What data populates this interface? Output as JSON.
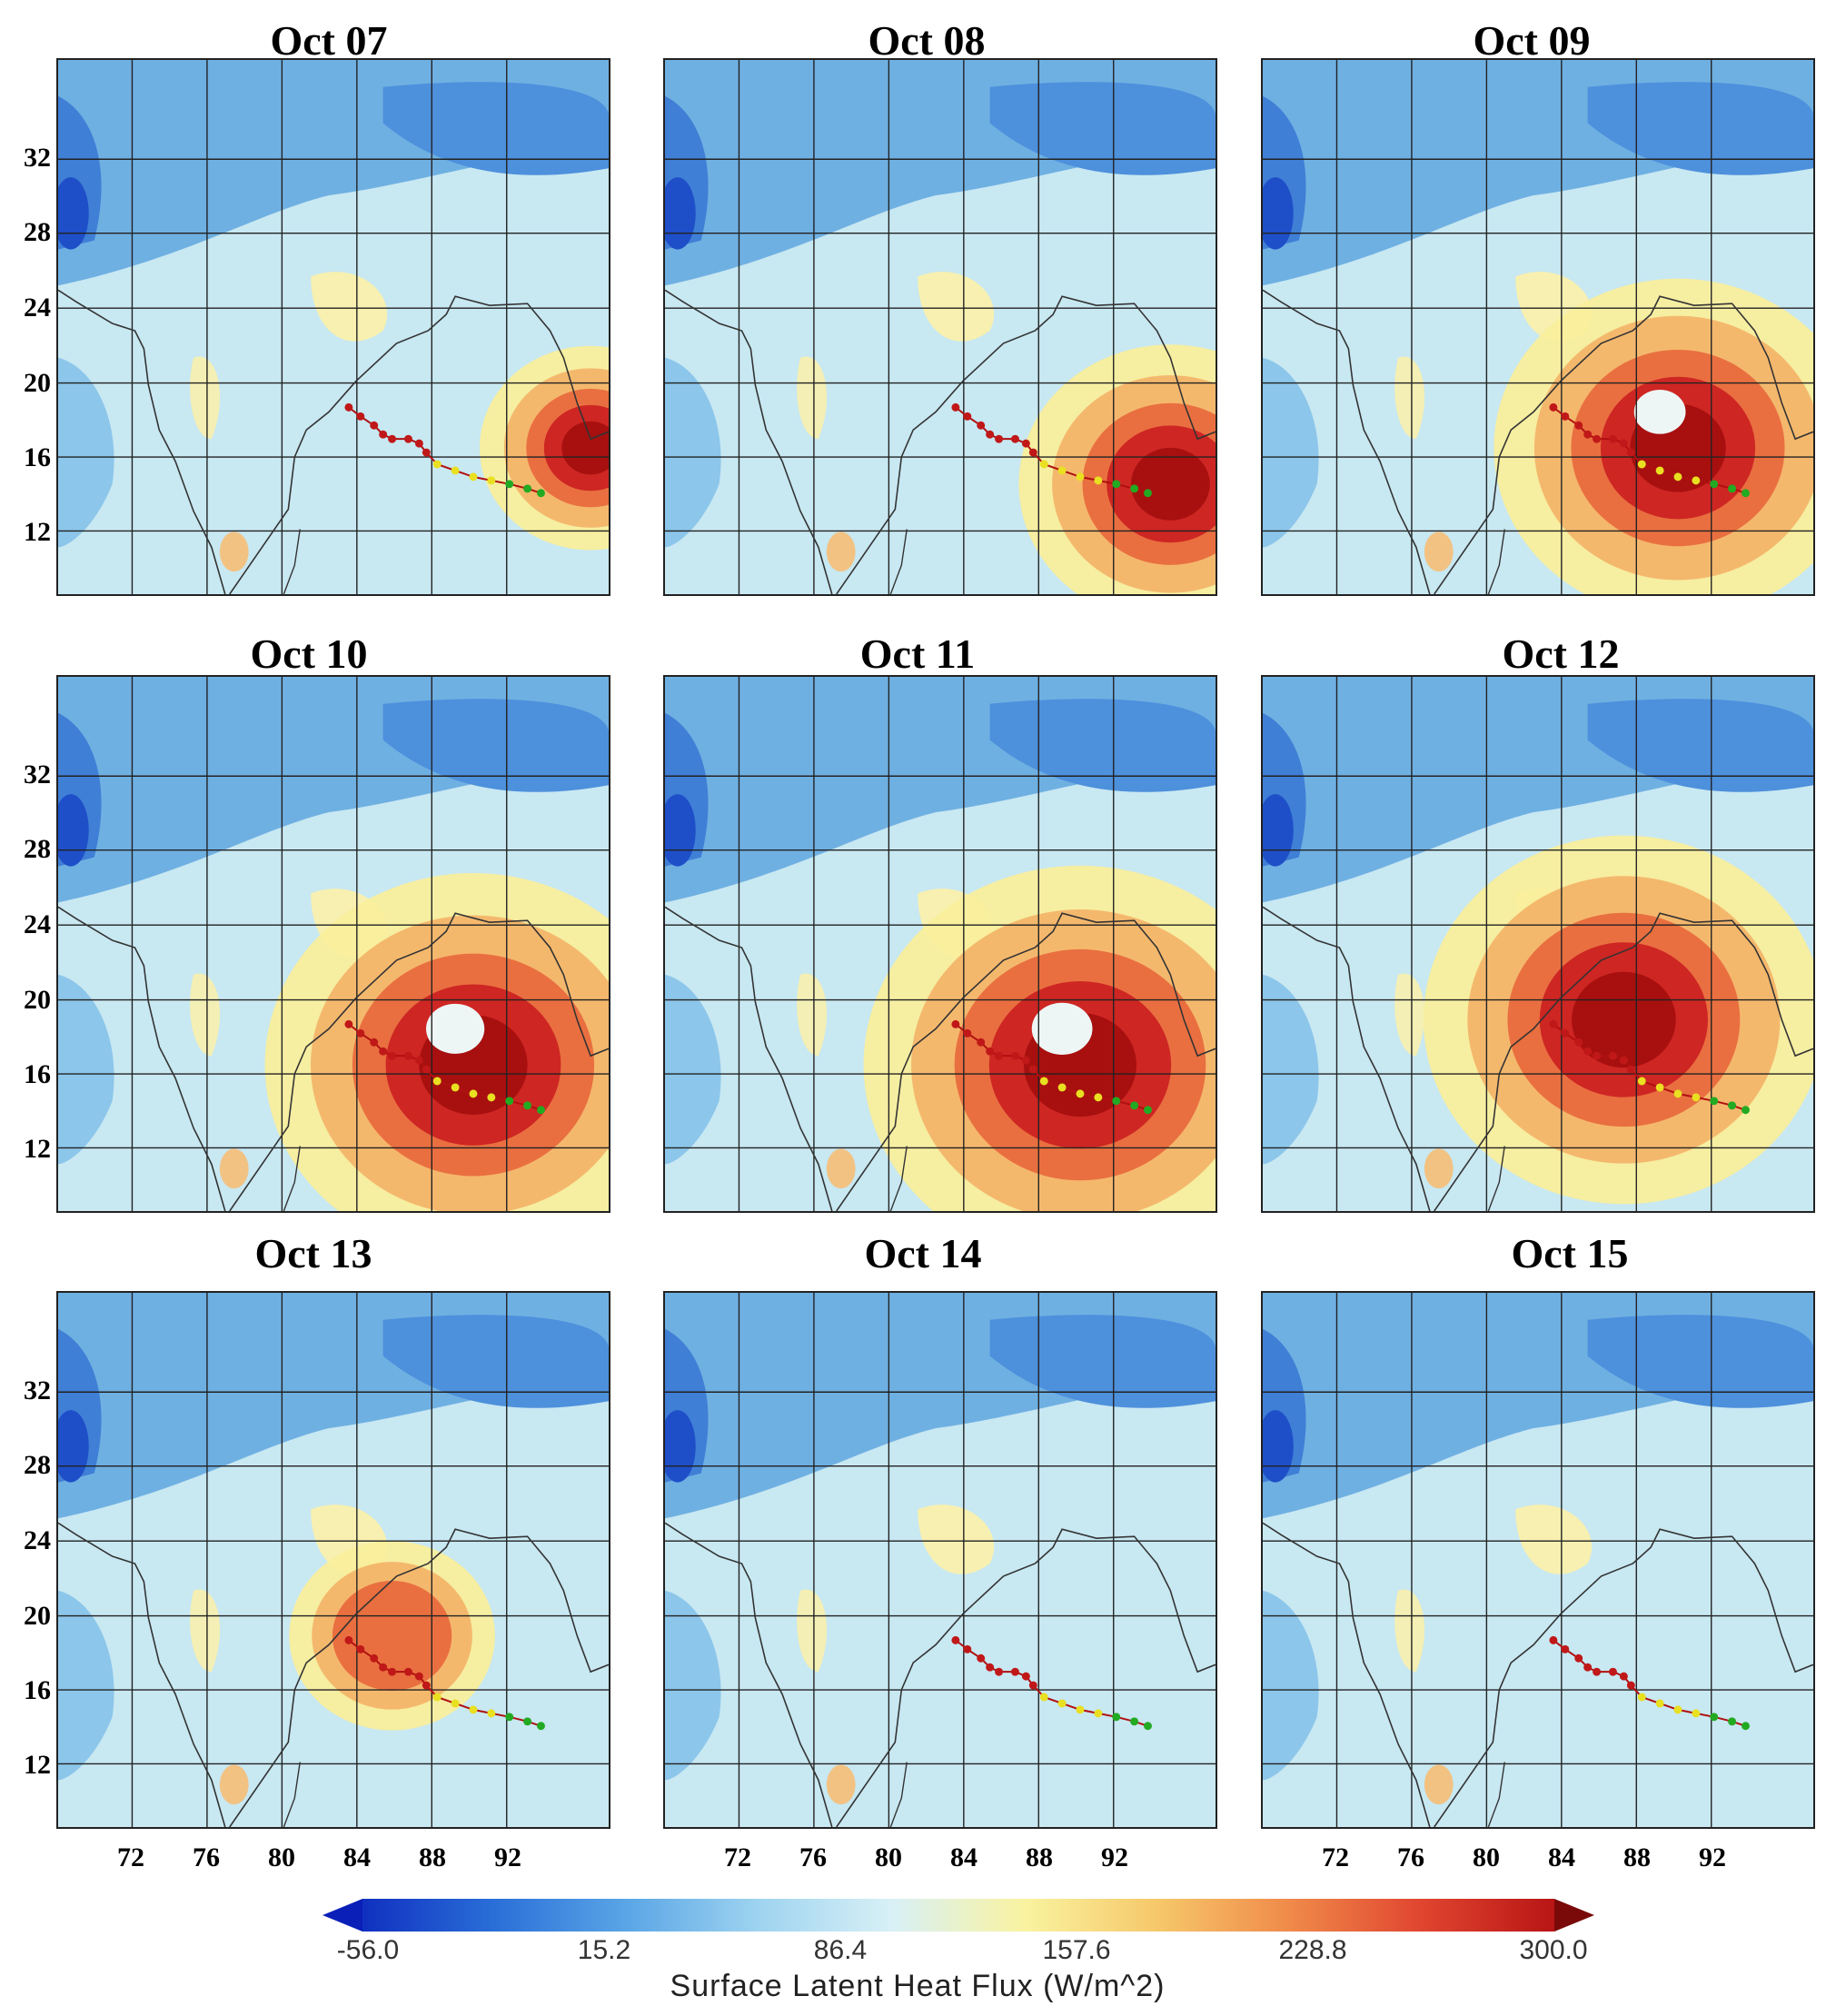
{
  "figure": {
    "panels": [
      {
        "title": "Oct 07",
        "blob_intensity": 0.35,
        "blob_shape": "east-edge"
      },
      {
        "title": "Oct 08",
        "blob_intensity": 0.6,
        "blob_shape": "southeast"
      },
      {
        "title": "Oct 09",
        "blob_intensity": 0.8,
        "blob_shape": "ring"
      },
      {
        "title": "Oct 10",
        "blob_intensity": 0.95,
        "blob_shape": "ring"
      },
      {
        "title": "Oct 11",
        "blob_intensity": 1.0,
        "blob_shape": "ring"
      },
      {
        "title": "Oct 12",
        "blob_intensity": 0.9,
        "blob_shape": "west"
      },
      {
        "title": "Oct 13",
        "blob_intensity": 0.3,
        "blob_shape": "small"
      },
      {
        "title": "Oct 14",
        "blob_intensity": 0.0,
        "blob_shape": "none"
      },
      {
        "title": "Oct 15",
        "blob_intensity": 0.0,
        "blob_shape": "none"
      }
    ],
    "y_ticks": [
      "32",
      "28",
      "24",
      "20",
      "16",
      "12"
    ],
    "x_ticks": [
      "72",
      "76",
      "80",
      "84",
      "88",
      "92"
    ],
    "colorbar": {
      "tick_labels": [
        "-56.0",
        "15.2",
        "86.4",
        "157.6",
        "228.8",
        "300.0"
      ],
      "title": "Surface Latent Heat Flux (W/m^2)",
      "min": -56.0,
      "max": 300.0,
      "colors": [
        "#1030c0",
        "#2a6fd8",
        "#5aa6e6",
        "#9fd4f0",
        "#d8f0f6",
        "#f9f3a0",
        "#f6c86a",
        "#f08a4a",
        "#e0452f",
        "#b81515"
      ]
    },
    "track_colors": {
      "early": "#22aa22",
      "mid": "#e8e020",
      "late": "#c01818"
    }
  }
}
